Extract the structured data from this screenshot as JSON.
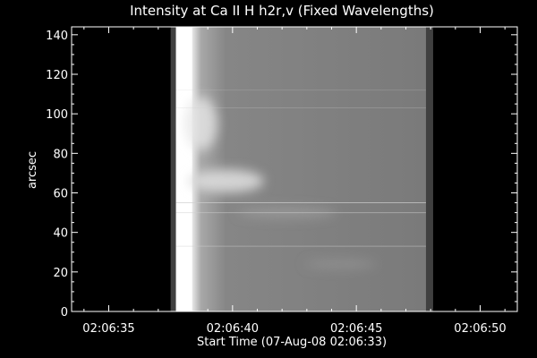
{
  "chart_data": {
    "type": "heatmap",
    "title": "Intensity at Ca II H h2r,v (Fixed Wavelengths)",
    "xlabel": "Start Time (07-Aug-08 02:06:33)",
    "ylabel": "arcsec",
    "x_ticks": [
      "02:06:35",
      "02:06:40",
      "02:06:45",
      "02:06:50"
    ],
    "x_tick_seconds": [
      2,
      7,
      12,
      17
    ],
    "xlim_seconds": [
      0.5,
      18.5
    ],
    "y_ticks": [
      0,
      20,
      40,
      60,
      80,
      100,
      120,
      140
    ],
    "ylim": [
      0,
      144
    ],
    "data_window_seconds": [
      4.5,
      15.1
    ],
    "colormap": "grayscale",
    "colors": {
      "background": "#000000",
      "axis": "#ffffff",
      "data_base": "#7a7a7a",
      "data_bright": "#ffffff",
      "edge_band": "#404040"
    }
  }
}
